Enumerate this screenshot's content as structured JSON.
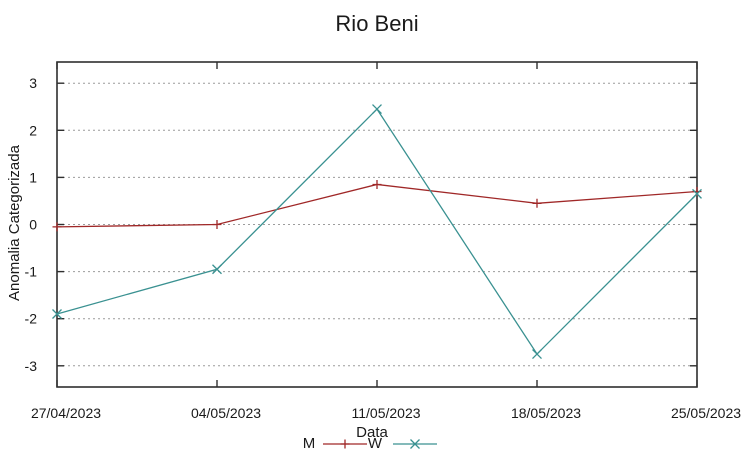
{
  "chart_data": {
    "type": "line",
    "title": "Rio Beni",
    "xlabel": "Data",
    "ylabel": "Anomalia Categorizada",
    "categories": [
      "27/04/2023",
      "04/05/2023",
      "11/05/2023",
      "18/05/2023",
      "25/05/2023"
    ],
    "series": [
      {
        "name": "M",
        "marker": "plus",
        "color": "#a02828",
        "values": [
          -0.05,
          0.0,
          0.85,
          0.45,
          0.7
        ]
      },
      {
        "name": "W",
        "marker": "cross",
        "color": "#3a9191",
        "values": [
          -1.9,
          -0.95,
          2.45,
          -2.75,
          0.65
        ]
      }
    ],
    "ylim": [
      -3.45,
      3.45
    ],
    "yticks": [
      -3,
      -2,
      -1,
      0,
      1,
      2,
      3
    ],
    "grid": "horizontal-dashed",
    "legend_position": "bottom-center",
    "axis_color": "#2f2f2f",
    "grid_color": "#9c9c9c"
  }
}
